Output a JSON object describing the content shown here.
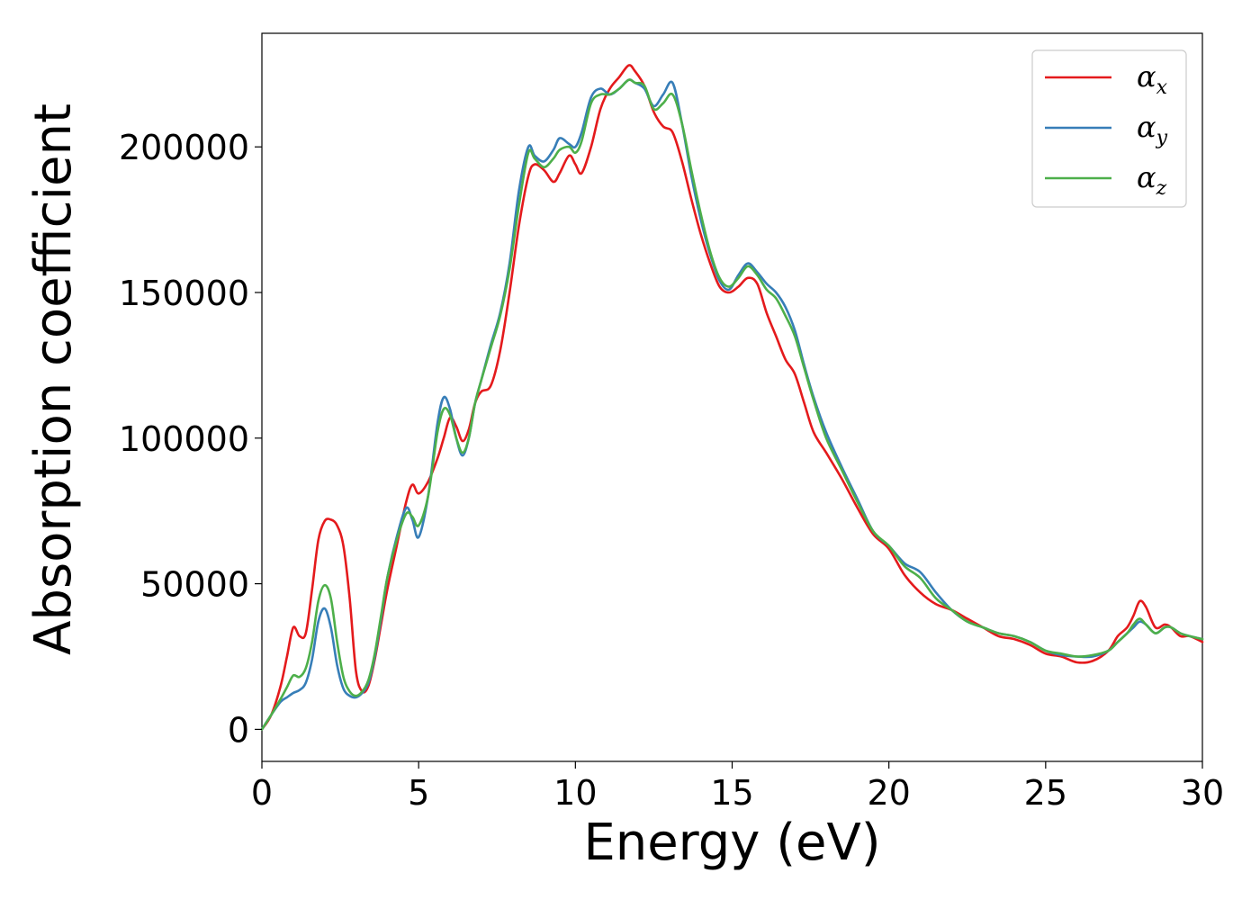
{
  "chart_data": {
    "type": "line",
    "xlabel": "Energy (eV)",
    "ylabel": "Absorption coefficient",
    "xlim": [
      0,
      30
    ],
    "ylim": [
      -11000,
      239000
    ],
    "xticks": [
      0,
      5,
      10,
      15,
      20,
      25,
      30
    ],
    "yticks": [
      0,
      50000,
      100000,
      150000,
      200000
    ],
    "grid": false,
    "legend_position": "top-right",
    "series": [
      {
        "name": "αx",
        "legend_base": "α",
        "legend_sub": "x",
        "color": "#e41a1c",
        "x": [
          0,
          0.3,
          0.6,
          0.8,
          1.0,
          1.2,
          1.4,
          1.6,
          1.8,
          2.0,
          2.2,
          2.4,
          2.6,
          2.8,
          3.0,
          3.2,
          3.4,
          3.6,
          3.8,
          4.0,
          4.3,
          4.6,
          4.8,
          5.0,
          5.3,
          5.6,
          5.8,
          6.0,
          6.2,
          6.4,
          6.6,
          6.8,
          7.0,
          7.3,
          7.6,
          7.9,
          8.2,
          8.5,
          8.7,
          9.0,
          9.3,
          9.5,
          9.8,
          10.0,
          10.2,
          10.5,
          10.8,
          11.1,
          11.4,
          11.7,
          11.9,
          12.2,
          12.5,
          12.8,
          13.1,
          13.4,
          13.7,
          14.0,
          14.3,
          14.6,
          14.9,
          15.2,
          15.5,
          15.8,
          16.1,
          16.4,
          16.7,
          17.0,
          17.3,
          17.6,
          18.0,
          18.5,
          19.0,
          19.5,
          20.0,
          20.5,
          21.0,
          21.5,
          22.0,
          22.5,
          23.0,
          23.5,
          24.0,
          24.5,
          25.0,
          25.5,
          26.0,
          26.5,
          27.0,
          27.3,
          27.6,
          27.8,
          28.0,
          28.2,
          28.5,
          28.8,
          29.0,
          29.3,
          29.6,
          30.0
        ],
        "y": [
          0,
          5000,
          15000,
          25000,
          35000,
          32000,
          33000,
          48000,
          65000,
          71500,
          72000,
          70000,
          63000,
          45000,
          20000,
          13000,
          15000,
          24000,
          36000,
          48000,
          63000,
          78000,
          84000,
          81000,
          85000,
          93000,
          100000,
          107000,
          104000,
          99000,
          103000,
          112000,
          116000,
          118000,
          130000,
          150000,
          173000,
          190000,
          194000,
          192000,
          188000,
          191000,
          197000,
          194000,
          191000,
          200000,
          213000,
          220000,
          224000,
          228000,
          226000,
          221000,
          212000,
          207000,
          205000,
          195000,
          182000,
          170000,
          160000,
          152000,
          150000,
          152000,
          155000,
          153000,
          143000,
          135000,
          127000,
          122000,
          112000,
          102000,
          95000,
          86000,
          76000,
          67000,
          62000,
          53000,
          47000,
          43000,
          41000,
          38000,
          35000,
          32000,
          31000,
          29000,
          26000,
          25000,
          23000,
          23500,
          27000,
          32000,
          35000,
          39000,
          44000,
          42000,
          35000,
          36000,
          35000,
          32000,
          32000,
          30000
        ]
      },
      {
        "name": "αy",
        "legend_base": "α",
        "legend_sub": "y",
        "color": "#377eb8",
        "x": [
          0,
          0.3,
          0.6,
          0.8,
          1.0,
          1.2,
          1.4,
          1.6,
          1.8,
          2.0,
          2.2,
          2.4,
          2.6,
          2.8,
          3.0,
          3.2,
          3.4,
          3.6,
          3.8,
          4.0,
          4.3,
          4.6,
          4.8,
          5.0,
          5.3,
          5.6,
          5.8,
          6.0,
          6.2,
          6.4,
          6.6,
          6.8,
          7.0,
          7.3,
          7.6,
          7.9,
          8.2,
          8.5,
          8.7,
          9.0,
          9.3,
          9.5,
          9.8,
          10.0,
          10.2,
          10.5,
          10.8,
          11.1,
          11.4,
          11.7,
          11.9,
          12.2,
          12.5,
          12.8,
          13.1,
          13.4,
          13.7,
          14.0,
          14.3,
          14.6,
          14.9,
          15.2,
          15.5,
          15.8,
          16.1,
          16.4,
          16.7,
          17.0,
          17.3,
          17.6,
          18.0,
          18.5,
          19.0,
          19.5,
          20.0,
          20.5,
          21.0,
          21.5,
          22.0,
          22.5,
          23.0,
          23.5,
          24.0,
          24.5,
          25.0,
          25.5,
          26.0,
          26.5,
          27.0,
          27.3,
          27.6,
          27.8,
          28.0,
          28.2,
          28.5,
          28.8,
          29.0,
          29.3,
          29.6,
          30.0
        ],
        "y": [
          0,
          5000,
          9500,
          11000,
          12500,
          13500,
          16000,
          24000,
          37000,
          41500,
          35000,
          22000,
          14000,
          11500,
          11000,
          12500,
          16000,
          25000,
          38000,
          52000,
          66000,
          76000,
          72000,
          66000,
          80000,
          105000,
          114000,
          110000,
          100000,
          94000,
          100000,
          112000,
          120000,
          132000,
          143000,
          160000,
          185000,
          200000,
          197000,
          195000,
          199000,
          203000,
          201000,
          200000,
          205000,
          217000,
          220000,
          218000,
          220000,
          223000,
          222000,
          220000,
          214000,
          218000,
          222000,
          208000,
          190000,
          175000,
          163000,
          154000,
          151000,
          156000,
          160000,
          157000,
          153000,
          150000,
          145000,
          137000,
          125000,
          114000,
          102000,
          90000,
          79000,
          68000,
          63000,
          57000,
          54000,
          47000,
          41000,
          37000,
          35000,
          33000,
          32000,
          30000,
          27000,
          25500,
          25000,
          25000,
          27000,
          30000,
          33000,
          35000,
          37000,
          36000,
          33000,
          35000,
          35000,
          33000,
          32000,
          31000
        ]
      },
      {
        "name": "αz",
        "legend_base": "α",
        "legend_sub": "z",
        "color": "#4daf4a",
        "x": [
          0,
          0.3,
          0.6,
          0.8,
          1.0,
          1.2,
          1.4,
          1.6,
          1.8,
          2.0,
          2.2,
          2.4,
          2.6,
          2.8,
          3.0,
          3.2,
          3.4,
          3.6,
          3.8,
          4.0,
          4.3,
          4.6,
          4.8,
          5.0,
          5.3,
          5.6,
          5.8,
          6.0,
          6.2,
          6.4,
          6.6,
          6.8,
          7.0,
          7.3,
          7.6,
          7.9,
          8.2,
          8.5,
          8.7,
          9.0,
          9.3,
          9.5,
          9.8,
          10.0,
          10.2,
          10.5,
          10.8,
          11.1,
          11.4,
          11.7,
          11.9,
          12.2,
          12.5,
          12.8,
          13.1,
          13.4,
          13.7,
          14.0,
          14.3,
          14.6,
          14.9,
          15.2,
          15.5,
          15.8,
          16.1,
          16.4,
          16.7,
          17.0,
          17.3,
          17.6,
          18.0,
          18.5,
          19.0,
          19.5,
          20.0,
          20.5,
          21.0,
          21.5,
          22.0,
          22.5,
          23.0,
          23.5,
          24.0,
          24.5,
          25.0,
          25.5,
          26.0,
          26.5,
          27.0,
          27.3,
          27.6,
          27.8,
          28.0,
          28.2,
          28.5,
          28.8,
          29.0,
          29.3,
          29.6,
          30.0
        ],
        "y": [
          0,
          5000,
          10500,
          14500,
          18500,
          18000,
          21000,
          30000,
          44000,
          49500,
          45000,
          30000,
          18000,
          13000,
          11500,
          13000,
          17000,
          26000,
          39000,
          52000,
          65000,
          74000,
          73000,
          70000,
          80000,
          102000,
          110000,
          108000,
          100000,
          95000,
          100000,
          112000,
          120000,
          131000,
          142000,
          158000,
          180000,
          198000,
          196000,
          193000,
          196000,
          199000,
          200000,
          198000,
          202000,
          215000,
          218000,
          218000,
          220000,
          223000,
          222000,
          221000,
          213000,
          215000,
          218000,
          208000,
          192000,
          177000,
          164000,
          155000,
          152000,
          155000,
          159000,
          156000,
          151000,
          148000,
          142000,
          135000,
          124000,
          113000,
          100000,
          89000,
          78000,
          68000,
          63000,
          56000,
          52000,
          45000,
          41000,
          37000,
          35000,
          33000,
          32000,
          30000,
          27000,
          26000,
          25000,
          25500,
          27000,
          30000,
          33000,
          36000,
          38000,
          36000,
          33000,
          35000,
          35000,
          33000,
          32000,
          31000
        ]
      }
    ]
  }
}
